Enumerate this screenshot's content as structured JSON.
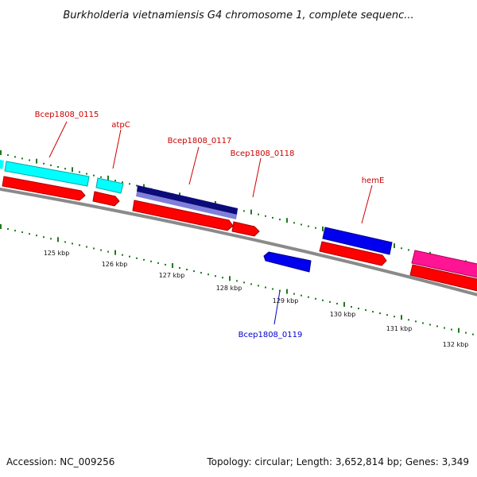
{
  "title": "Burkholderia vietnamiensis G4 chromosome 1, complete sequenc...",
  "footer": {
    "accession": "Accession: NC_009256",
    "topology": "Topology: circular; Length: 3,652,814 bp; Genes: 3,349"
  },
  "colors": {
    "backbone": "#8a8a8a",
    "tick_green": "#1e7a1e",
    "label_red": "#cc0000",
    "label_blue": "#0000cc",
    "cds_red": "#ff0000",
    "cyan": "#00ffff",
    "navy": "#0b0b7a",
    "lavender": "#7f7fd9",
    "blue": "#0000ee",
    "magenta": "#ff1493"
  },
  "axis": {
    "unit": "kbp",
    "tick_labels": [
      "125 kbp",
      "126 kbp",
      "127 kbp",
      "128 kbp",
      "129 kbp",
      "130 kbp",
      "131 kbp",
      "132 kbp"
    ]
  },
  "genes": [
    {
      "name": "Bcep1808_0115",
      "strand": "+",
      "color": "cyan"
    },
    {
      "name": "atpC",
      "strand": "+",
      "color": "cyan"
    },
    {
      "name": "Bcep1808_0117",
      "strand": "+",
      "color": "navy"
    },
    {
      "name": "Bcep1808_0118",
      "strand": "+",
      "color": "red"
    },
    {
      "name": "hemE",
      "strand": "+",
      "color": "blue"
    },
    {
      "name": "Bcep1808_0119",
      "strand": "-",
      "color": "blue"
    }
  ]
}
